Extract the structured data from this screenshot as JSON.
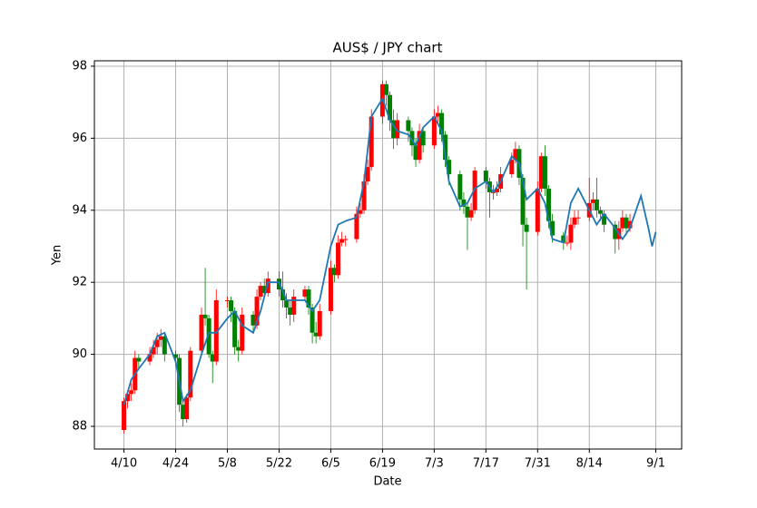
{
  "chart_data": {
    "type": "candlestick",
    "title": "AUS$ / JPY chart",
    "x_label": "Date",
    "y_label": "Yen",
    "x": [
      "4/10",
      "4/11",
      "4/12",
      "4/13",
      "4/14",
      "4/17",
      "4/18",
      "4/19",
      "4/20",
      "4/21",
      "4/24",
      "4/25",
      "4/26",
      "4/27",
      "4/28",
      "5/1",
      "5/2",
      "5/3",
      "5/4",
      "5/5",
      "5/8",
      "5/9",
      "5/10",
      "5/11",
      "5/12",
      "5/15",
      "5/16",
      "5/17",
      "5/18",
      "5/19",
      "5/22",
      "5/23",
      "5/24",
      "5/25",
      "5/26",
      "5/29",
      "5/30",
      "5/31",
      "6/1",
      "6/2",
      "6/5",
      "6/6",
      "6/7",
      "6/8",
      "6/9",
      "6/12",
      "6/13",
      "6/14",
      "6/15",
      "6/16",
      "6/19",
      "6/20",
      "6/21",
      "6/22",
      "6/23",
      "6/26",
      "6/27",
      "6/28",
      "6/29",
      "6/30",
      "7/3",
      "7/4",
      "7/5",
      "7/6",
      "7/7",
      "7/10",
      "7/11",
      "7/12",
      "7/13",
      "7/14",
      "7/17",
      "7/18",
      "7/19",
      "7/20",
      "7/21",
      "7/24",
      "7/25",
      "7/26",
      "7/27",
      "7/28",
      "7/31",
      "8/1",
      "8/2",
      "8/3",
      "8/4",
      "8/7",
      "8/8",
      "8/9",
      "8/10",
      "8/11",
      "8/14",
      "8/15",
      "8/16",
      "8/17",
      "8/18",
      "8/21",
      "8/22",
      "8/23",
      "8/24",
      "8/25"
    ],
    "open": [
      87.9,
      88.7,
      88.9,
      89.0,
      89.9,
      89.8,
      90.0,
      90.2,
      90.4,
      90.5,
      90.0,
      89.9,
      88.6,
      88.2,
      88.8,
      90.1,
      91.1,
      91.0,
      90.0,
      89.8,
      91.5,
      91.5,
      91.2,
      90.2,
      90.1,
      91.1,
      90.8,
      91.6,
      91.9,
      91.7,
      92.1,
      91.8,
      91.5,
      91.3,
      91.1,
      91.6,
      91.8,
      91.3,
      90.6,
      90.5,
      91.2,
      92.4,
      92.2,
      93.1,
      93.2,
      93.2,
      93.9,
      94.0,
      94.8,
      95.2,
      96.6,
      97.5,
      97.2,
      96.5,
      96.0,
      96.5,
      96.2,
      95.8,
      95.4,
      96.2,
      95.8,
      96.6,
      96.7,
      96.1,
      95.4,
      95.0,
      94.3,
      94.1,
      93.8,
      94.0,
      95.1,
      94.8,
      94.5,
      94.5,
      94.6,
      95.0,
      95.4,
      95.7,
      94.9,
      93.6,
      93.4,
      94.6,
      95.5,
      94.6,
      93.7,
      93.3,
      93.1,
      93.1,
      93.6,
      93.8,
      93.8,
      94.2,
      94.3,
      94.0,
      93.9,
      93.6,
      93.2,
      93.5,
      93.8,
      93.5
    ],
    "high": [
      88.8,
      89.0,
      89.2,
      90.1,
      90.0,
      90.2,
      90.4,
      90.6,
      90.7,
      90.6,
      90.1,
      90.0,
      88.8,
      88.9,
      90.2,
      91.3,
      92.4,
      91.1,
      90.1,
      91.8,
      91.6,
      91.6,
      91.3,
      90.4,
      91.3,
      91.2,
      91.8,
      92.0,
      92.1,
      92.3,
      92.3,
      92.3,
      91.7,
      91.5,
      91.8,
      91.9,
      91.9,
      91.4,
      90.9,
      91.4,
      92.6,
      92.5,
      93.3,
      93.4,
      93.3,
      94.1,
      94.2,
      95.0,
      95.4,
      96.8,
      97.6,
      97.6,
      97.3,
      96.8,
      96.7,
      96.6,
      96.3,
      96.0,
      96.4,
      96.3,
      96.8,
      96.9,
      96.8,
      96.2,
      95.5,
      95.1,
      94.5,
      94.2,
      94.2,
      95.2,
      95.2,
      94.9,
      94.7,
      94.8,
      95.2,
      95.6,
      95.9,
      95.8,
      95.0,
      93.8,
      94.8,
      95.6,
      95.8,
      94.7,
      93.9,
      93.4,
      93.3,
      93.8,
      94.0,
      94.0,
      94.9,
      94.5,
      94.9,
      94.1,
      94.0,
      93.7,
      93.7,
      94.0,
      93.9,
      93.9
    ],
    "low": [
      87.8,
      88.5,
      88.7,
      88.9,
      89.6,
      89.7,
      89.9,
      90.0,
      90.2,
      89.8,
      89.7,
      88.4,
      88.0,
      88.1,
      88.7,
      90.0,
      90.8,
      89.9,
      89.2,
      89.7,
      91.3,
      90.9,
      90.0,
      89.8,
      90.0,
      90.6,
      90.7,
      91.5,
      91.6,
      91.6,
      91.6,
      91.3,
      91.0,
      90.8,
      90.9,
      91.5,
      91.1,
      90.3,
      90.3,
      90.4,
      91.1,
      92.0,
      92.1,
      93.0,
      93.0,
      93.1,
      93.8,
      93.9,
      94.7,
      95.1,
      96.4,
      96.9,
      96.2,
      95.7,
      95.8,
      95.9,
      95.5,
      95.2,
      95.3,
      95.6,
      95.7,
      96.4,
      95.9,
      95.2,
      94.7,
      94.0,
      93.9,
      92.9,
      93.7,
      93.9,
      94.6,
      93.8,
      94.3,
      94.4,
      94.5,
      94.9,
      95.3,
      94.7,
      93.0,
      91.8,
      93.3,
      94.5,
      94.4,
      93.5,
      93.1,
      92.9,
      93.0,
      92.9,
      93.5,
      93.6,
      93.7,
      94.0,
      93.8,
      93.7,
      93.4,
      92.8,
      92.9,
      93.4,
      93.3,
      93.4
    ],
    "close": [
      88.7,
      88.9,
      89.0,
      89.9,
      89.8,
      90.0,
      90.2,
      90.4,
      90.5,
      90.0,
      89.9,
      88.6,
      88.2,
      88.8,
      90.1,
      91.1,
      91.0,
      90.0,
      89.8,
      91.5,
      91.5,
      91.2,
      90.2,
      90.1,
      91.1,
      90.8,
      91.6,
      91.9,
      91.7,
      92.1,
      91.8,
      91.5,
      91.3,
      91.1,
      91.6,
      91.8,
      91.3,
      90.6,
      90.5,
      91.2,
      92.4,
      92.2,
      93.1,
      93.2,
      93.2,
      93.9,
      94.0,
      94.8,
      95.2,
      96.6,
      97.5,
      97.2,
      96.5,
      96.0,
      96.5,
      96.2,
      95.8,
      95.4,
      96.2,
      95.8,
      96.6,
      96.7,
      96.1,
      95.4,
      95.0,
      94.3,
      94.1,
      93.8,
      94.0,
      95.1,
      94.8,
      94.5,
      94.5,
      94.6,
      95.0,
      95.4,
      95.7,
      94.9,
      93.6,
      93.4,
      94.6,
      95.5,
      94.6,
      93.7,
      93.3,
      93.1,
      93.1,
      93.6,
      93.8,
      93.8,
      94.2,
      94.3,
      94.0,
      93.9,
      93.6,
      93.2,
      93.5,
      93.8,
      93.5,
      93.7
    ],
    "up_color": "red",
    "down_color": "green",
    "line": {
      "color": "#1f77b4",
      "x": [
        "4/10",
        "4/12",
        "4/14",
        "4/17",
        "4/19",
        "4/21",
        "4/24",
        "4/26",
        "4/28",
        "5/1",
        "5/3",
        "5/5",
        "5/8",
        "5/10",
        "5/12",
        "5/15",
        "5/17",
        "5/19",
        "5/22",
        "5/24",
        "5/26",
        "5/29",
        "5/31",
        "6/2",
        "6/5",
        "6/7",
        "6/9",
        "6/12",
        "6/14",
        "6/16",
        "6/19",
        "6/21",
        "6/23",
        "6/26",
        "6/28",
        "6/30",
        "7/3",
        "7/5",
        "7/7",
        "7/10",
        "7/12",
        "7/14",
        "7/17",
        "7/19",
        "7/21",
        "7/24",
        "7/26",
        "7/28",
        "7/31",
        "8/2",
        "8/4",
        "8/7",
        "8/9",
        "8/11",
        "8/14",
        "8/16",
        "8/18",
        "8/21",
        "8/23",
        "8/25",
        "8/28",
        "8/30",
        "8/31",
        "9/1"
      ],
      "values": [
        88.6,
        89.3,
        89.6,
        90.0,
        90.5,
        90.6,
        89.8,
        88.7,
        89.0,
        90.0,
        90.6,
        90.6,
        91.0,
        91.2,
        90.8,
        90.6,
        91.2,
        92.0,
        92.0,
        91.5,
        91.5,
        91.5,
        91.2,
        91.5,
        93.0,
        93.6,
        93.7,
        93.8,
        94.8,
        96.6,
        97.1,
        96.5,
        96.2,
        96.1,
        95.8,
        96.3,
        96.6,
        96.2,
        94.8,
        94.1,
        94.2,
        94.6,
        94.8,
        94.5,
        94.8,
        95.5,
        95.3,
        94.3,
        94.6,
        94.2,
        93.2,
        93.1,
        94.2,
        94.6,
        94.0,
        93.6,
        93.9,
        93.5,
        93.2,
        93.5,
        94.4,
        93.5,
        93.0,
        93.4
      ]
    },
    "xlim": [
      "4/2",
      "9/8"
    ],
    "xticks": [
      "4/10",
      "4/24",
      "5/8",
      "5/22",
      "6/5",
      "6/19",
      "7/3",
      "7/17",
      "7/31",
      "8/14",
      "9/1"
    ],
    "ylim": [
      87.37,
      98.15
    ],
    "yticks": [
      88,
      90,
      92,
      94,
      96,
      98
    ],
    "grid": true
  }
}
